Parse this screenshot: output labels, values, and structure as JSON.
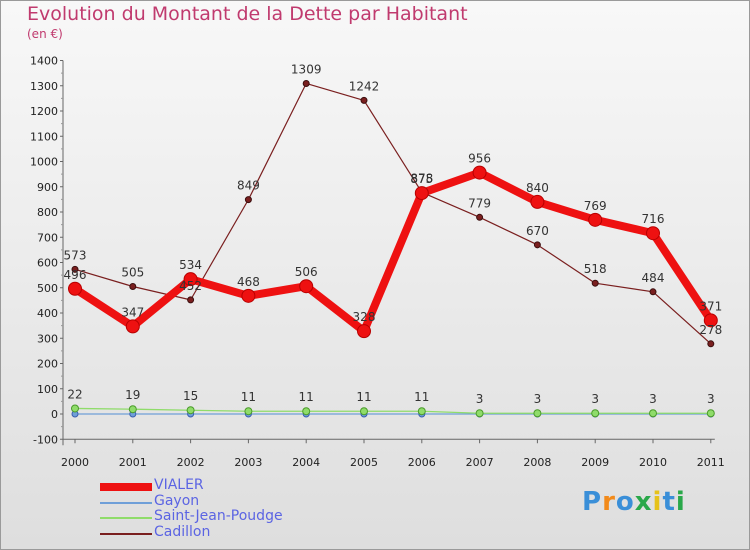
{
  "title": "Evolution du Montant de la Dette par Habitant",
  "subtitle": "(en €)",
  "logo_text": "Proxiti",
  "chart_data": {
    "type": "line",
    "title": "Evolution du Montant de la Dette par Habitant",
    "subtitle": "(en €)",
    "categories": [
      "2000",
      "2001",
      "2002",
      "2003",
      "2004",
      "2005",
      "2006",
      "2007",
      "2008",
      "2009",
      "2010",
      "2011"
    ],
    "ylim": [
      -100,
      1400
    ],
    "yticks": [
      -100,
      0,
      100,
      200,
      300,
      400,
      500,
      600,
      700,
      800,
      900,
      1000,
      1100,
      1200,
      1300,
      1400
    ],
    "grid": false,
    "legend_position": "bottom-left",
    "series": [
      {
        "name": "VIALER",
        "color": "#ee1111",
        "values": [
          496,
          347,
          534,
          468,
          506,
          328,
          875,
          956,
          840,
          769,
          716,
          371
        ]
      },
      {
        "name": "Gayon",
        "color": "#6f9fd8",
        "values": [
          0,
          0,
          0,
          0,
          0,
          0,
          0,
          0,
          0,
          0,
          0,
          0
        ]
      },
      {
        "name": "Saint-Jean-Poudge",
        "color": "#8fdc6a",
        "values": [
          22,
          19,
          15,
          11,
          11,
          11,
          11,
          3,
          3,
          3,
          3,
          3
        ]
      },
      {
        "name": "Cadillon",
        "color": "#7a1f1f",
        "values": [
          573,
          505,
          452,
          849,
          1309,
          1242,
          878,
          779,
          670,
          518,
          484,
          278
        ]
      }
    ]
  }
}
